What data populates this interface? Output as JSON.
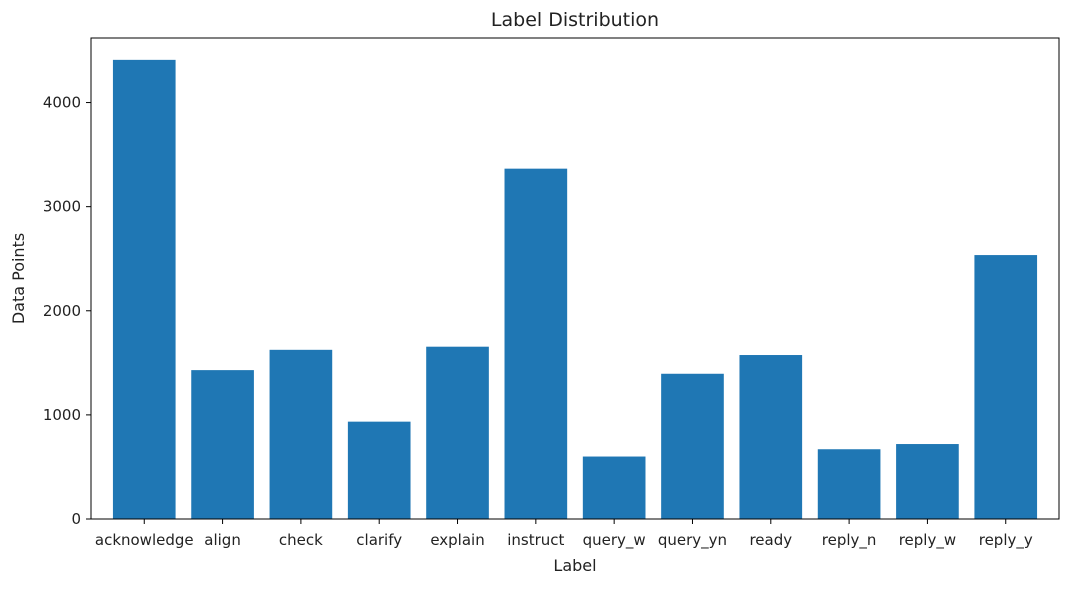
{
  "chart_data": {
    "type": "bar",
    "title": "Label Distribution",
    "xlabel": "Label",
    "ylabel": "Data Points",
    "categories": [
      "acknowledge",
      "align",
      "check",
      "clarify",
      "explain",
      "instruct",
      "query_w",
      "query_yn",
      "ready",
      "reply_n",
      "reply_w",
      "reply_y"
    ],
    "values": [
      4410,
      1430,
      1625,
      935,
      1655,
      3365,
      600,
      1395,
      1575,
      670,
      720,
      2535
    ],
    "ylim": [
      0,
      4620
    ],
    "yticks": [
      0,
      1000,
      2000,
      3000,
      4000
    ],
    "grid": false,
    "legend": "none",
    "bar_color": "#1f77b4"
  }
}
